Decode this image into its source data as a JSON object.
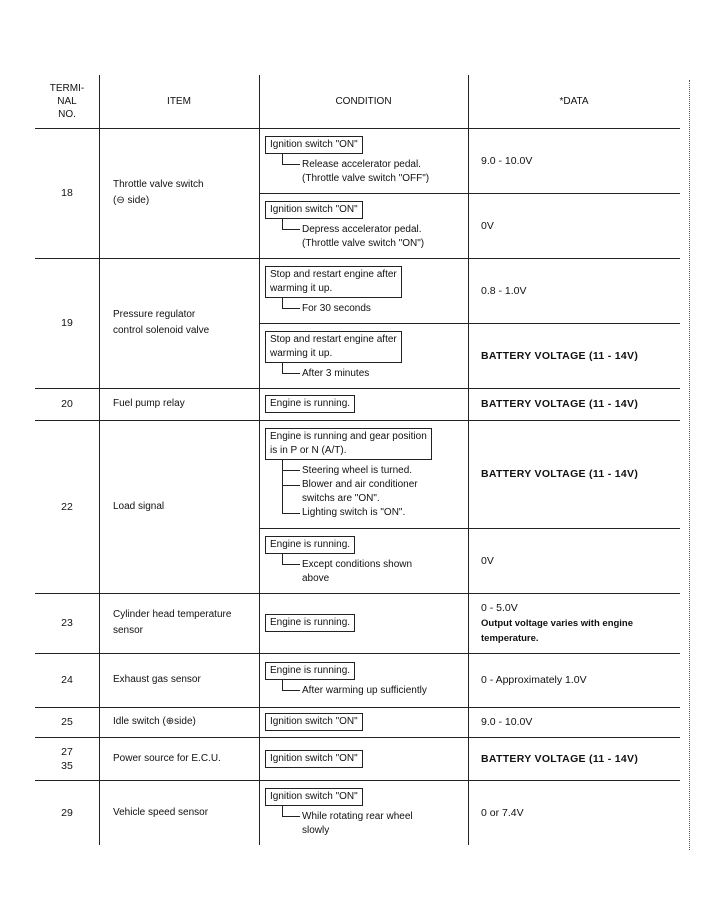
{
  "header": {
    "terminal": "TERMI-\nNAL\nNO.",
    "item": "ITEM",
    "condition": "CONDITION",
    "data": "*DATA"
  },
  "rows": [
    {
      "terminal": "18",
      "item": "Throttle valve switch\n(⊖ side)",
      "conditions": [
        {
          "box": "Ignition switch \"ON\"",
          "subs": [
            "Release accelerator pedal.\n(Throttle valve switch \"OFF\")"
          ],
          "data": "9.0 - 10.0V"
        },
        {
          "box": "Ignition switch \"ON\"",
          "subs": [
            "Depress accelerator pedal.\n(Throttle valve switch \"ON\")"
          ],
          "data": "0V"
        }
      ]
    },
    {
      "terminal": "19",
      "item": "Pressure regulator\ncontrol solenoid valve",
      "conditions": [
        {
          "box": "Stop and restart engine after\nwarming it up.",
          "subs": [
            "For 30 seconds"
          ],
          "data": "0.8 - 1.0V"
        },
        {
          "box": "Stop and restart engine after\nwarming it up.",
          "subs": [
            "After 3 minutes"
          ],
          "data": "BATTERY VOLTAGE (11 - 14V)"
        }
      ]
    },
    {
      "terminal": "20",
      "item": "Fuel pump relay",
      "conditions": [
        {
          "box": "Engine is running.",
          "subs": [],
          "data": "BATTERY VOLTAGE (11 - 14V)"
        }
      ]
    },
    {
      "terminal": "22",
      "item": "Load signal",
      "conditions": [
        {
          "box": "Engine is running and gear position\nis in P or N (A/T).",
          "subs": [
            "Steering wheel is turned.",
            "Blower and air conditioner\nswitchs are \"ON\".",
            "Lighting switch is \"ON\"."
          ],
          "data": "BATTERY VOLTAGE (11 - 14V)"
        },
        {
          "box": "Engine is running.",
          "subs": [
            "Except conditions shown\nabove"
          ],
          "data": "0V"
        }
      ]
    },
    {
      "terminal": "23",
      "item": "Cylinder head temperature\nsensor",
      "conditions": [
        {
          "box": "Engine is running.",
          "subs": [],
          "data": "0 - 5.0V",
          "note": "Output voltage varies with engine\ntemperature."
        }
      ]
    },
    {
      "terminal": "24",
      "item": "Exhaust gas sensor",
      "conditions": [
        {
          "box": "Engine is running.",
          "subs": [
            "After warming up sufficiently"
          ],
          "data": "0 - Approximately 1.0V"
        }
      ]
    },
    {
      "terminal": "25",
      "item": "Idle switch (⊕side)",
      "conditions": [
        {
          "box": "Ignition switch \"ON\"",
          "subs": [],
          "data": "9.0 - 10.0V"
        }
      ]
    },
    {
      "terminal": "27\n35",
      "item": "Power source for E.C.U.",
      "conditions": [
        {
          "box": "Ignition switch \"ON\"",
          "subs": [],
          "data": "BATTERY VOLTAGE (11 - 14V)"
        }
      ]
    },
    {
      "terminal": "29",
      "item": "Vehicle speed sensor",
      "conditions": [
        {
          "box": "Ignition switch \"ON\"",
          "subs": [
            "While rotating rear wheel\nslowly"
          ],
          "data": "0 or 7.4V"
        }
      ]
    }
  ]
}
